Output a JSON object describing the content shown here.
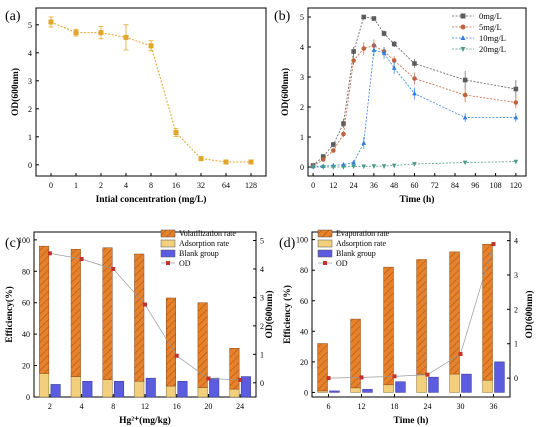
{
  "chart_data": [
    {
      "panel_label": "(a)",
      "type": "line",
      "categories": [
        "0",
        "1",
        "2",
        "4",
        "8",
        "16",
        "32",
        "64",
        "128"
      ],
      "values": [
        5.1,
        4.72,
        4.72,
        4.55,
        4.25,
        1.15,
        0.22,
        0.1,
        0.1
      ],
      "errors": [
        0.18,
        0.12,
        0.22,
        0.45,
        0.18,
        0.14,
        0.05,
        0.04,
        0.04
      ],
      "xlabel": "Intial concentration (mg/L)",
      "ylabel": "OD(600nm)",
      "ylim": [
        -0.4,
        5.6
      ],
      "yticks": [
        0,
        1,
        2,
        3,
        4,
        5
      ],
      "color": "#e0a52a"
    },
    {
      "panel_label": "(b)",
      "type": "line",
      "x": [
        0,
        6,
        12,
        18,
        24,
        30,
        36,
        42,
        48,
        60,
        90,
        120
      ],
      "series": [
        {
          "name": "0mg/L",
          "color": "#5c5c5c",
          "marker": "square",
          "values": [
            0.05,
            0.35,
            0.75,
            1.45,
            3.85,
            5.0,
            4.95,
            4.45,
            4.1,
            3.45,
            2.9,
            2.6
          ],
          "errors": [
            0.02,
            0.05,
            0.08,
            0.15,
            0.15,
            0.05,
            0.05,
            0.1,
            0.1,
            0.15,
            0.3,
            0.3
          ]
        },
        {
          "name": "5mg/L",
          "color": "#c0623c",
          "marker": "circle",
          "values": [
            0.03,
            0.25,
            0.55,
            1.1,
            3.55,
            3.95,
            4.05,
            3.85,
            3.55,
            2.95,
            2.4,
            2.15
          ],
          "errors": [
            0.02,
            0.05,
            0.08,
            0.1,
            0.15,
            0.2,
            0.2,
            0.15,
            0.15,
            0.2,
            0.25,
            0.2
          ]
        },
        {
          "name": "10mg/L",
          "color": "#2f7fe0",
          "marker": "triangle-up",
          "values": [
            0.02,
            0.03,
            0.05,
            0.08,
            0.15,
            0.8,
            3.9,
            3.8,
            3.3,
            2.45,
            1.65,
            1.65
          ],
          "errors": [
            0.01,
            0.01,
            0.02,
            0.03,
            0.05,
            0.2,
            0.2,
            0.2,
            0.2,
            0.2,
            0.15,
            0.15
          ]
        },
        {
          "name": "20mg/L",
          "color": "#4d9a8a",
          "marker": "triangle-down",
          "values": [
            0.0,
            0.0,
            0.0,
            0.0,
            0.02,
            0.02,
            0.03,
            0.03,
            0.05,
            0.1,
            0.15,
            0.18
          ],
          "errors": [
            0.01,
            0.01,
            0.01,
            0.01,
            0.01,
            0.01,
            0.01,
            0.01,
            0.02,
            0.02,
            0.02,
            0.02
          ]
        }
      ],
      "xlabel": "Time (h)",
      "ylabel": "OD(600nm)",
      "xlim": [
        -3,
        126
      ],
      "xticks": [
        0,
        12,
        24,
        36,
        48,
        60,
        72,
        84,
        96,
        108,
        120
      ],
      "ylim": [
        -0.3,
        5.3
      ],
      "yticks": [
        0,
        1,
        2,
        3,
        4,
        5
      ],
      "legend": "top-right"
    },
    {
      "panel_label": "(c)",
      "type": "bar",
      "categories": [
        "2",
        "4",
        "8",
        "12",
        "16",
        "20",
        "24"
      ],
      "series": [
        {
          "name": "Volatilization rate",
          "color": "#e8822a",
          "pattern": "hatch",
          "values": [
            81,
            81,
            84,
            81,
            56,
            54,
            26
          ]
        },
        {
          "name": "Adsorption rate",
          "color": "#f2cf7c",
          "values": [
            15,
            13,
            11,
            10,
            7,
            6,
            5
          ]
        },
        {
          "name": "Blank group",
          "color": "#5c5ce0",
          "values": [
            8,
            10,
            10,
            12,
            10,
            12,
            13
          ]
        },
        {
          "name": "OD",
          "color": "#c0322b",
          "marker": "square",
          "axis": "right",
          "values": [
            4.55,
            4.35,
            4.0,
            2.75,
            0.95,
            0.15,
            0.1
          ]
        }
      ],
      "xlabel": "Hg²⁺(mg/kg)",
      "ylabel": "Efficiency(%)",
      "ylabel_right": "OD(600nm)",
      "ylim": [
        0,
        105
      ],
      "yticks": [
        0,
        20,
        40,
        60,
        80,
        100
      ],
      "ylim_right": [
        -0.5,
        5.3
      ],
      "yticks_right": [
        0,
        1,
        2,
        3,
        4,
        5
      ],
      "legend": "top-right"
    },
    {
      "panel_label": "(d)",
      "type": "bar",
      "categories": [
        "6",
        "12",
        "18",
        "24",
        "30",
        "36"
      ],
      "series": [
        {
          "name": "Evaporation rate",
          "color": "#e8822a",
          "pattern": "hatch",
          "values": [
            31,
            45,
            77,
            75,
            80,
            89
          ]
        },
        {
          "name": "Adsorption rate",
          "color": "#f2cf7c",
          "values": [
            1,
            3,
            5,
            12,
            12,
            8
          ]
        },
        {
          "name": "Blank group",
          "color": "#5c5ce0",
          "values": [
            1,
            2,
            7,
            10,
            12,
            20
          ]
        },
        {
          "name": "OD",
          "color": "#c0322b",
          "marker": "square",
          "axis": "right",
          "values": [
            0.0,
            0.02,
            0.05,
            0.1,
            0.7,
            3.9
          ]
        }
      ],
      "xlabel": "Time (h)",
      "ylabel": "Efficiency (%)",
      "ylabel_right": "OD(600nm)",
      "ylim": [
        -3,
        105
      ],
      "yticks": [
        0,
        20,
        40,
        60,
        80,
        100
      ],
      "ylim_right": [
        -0.55,
        4.25
      ],
      "yticks_right": [
        0,
        1,
        2,
        3,
        4
      ],
      "legend": "top-left"
    }
  ]
}
